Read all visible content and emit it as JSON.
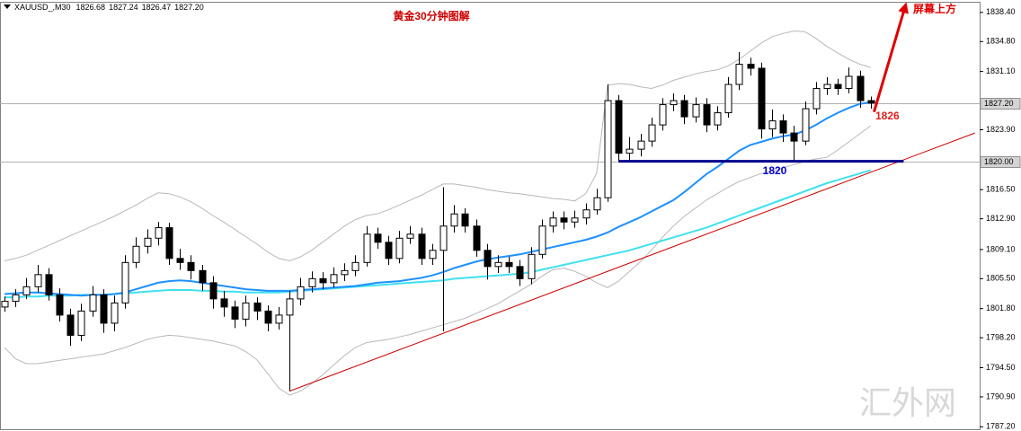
{
  "chart_data": {
    "type": "candlestick",
    "title": "黄金30分钟图解",
    "symbol": "XAUUSD_,M30",
    "quote": [
      "1826.68",
      "1827.24",
      "1826.47",
      "1827.20"
    ],
    "ylim": [
      1786.9,
      1839.6
    ],
    "yticks": [
      {
        "value": 1838.4,
        "label": "1838.40"
      },
      {
        "value": 1834.8,
        "label": "1834.80"
      },
      {
        "value": 1831.1,
        "label": "1831.10"
      },
      {
        "value": 1823.9,
        "label": "1823.90"
      },
      {
        "value": 1816.5,
        "label": "1816.50"
      },
      {
        "value": 1812.9,
        "label": "1812.90"
      },
      {
        "value": 1809.1,
        "label": "1809.10"
      },
      {
        "value": 1805.5,
        "label": "1805.50"
      },
      {
        "value": 1801.8,
        "label": "1801.80"
      },
      {
        "value": 1798.2,
        "label": "1798.20"
      },
      {
        "value": 1794.5,
        "label": "1794.50"
      },
      {
        "value": 1790.9,
        "label": "1790.90"
      },
      {
        "value": 1787.2,
        "label": "1787.20"
      }
    ],
    "price_levels": [
      {
        "value": 1827.2,
        "label": "1827.20"
      },
      {
        "value": 1820,
        "label": "1820.00"
      }
    ],
    "open": [
      1802.0,
      1802.7,
      1803.5,
      1804.5,
      1806.0,
      1803.5,
      1801.0,
      1798.5,
      1801.5,
      1803.5,
      1800.0,
      1802.5,
      1807.5,
      1809.5,
      1810.5,
      1811.8,
      1808.0,
      1807.5,
      1806.5,
      1805.0,
      1803.0,
      1802.0,
      1800.5,
      1802.5,
      1801.5,
      1800.0,
      1801.0,
      1803.0,
      1804.5,
      1805.5,
      1805.0,
      1806.0,
      1806.5,
      1807.5,
      1811.0,
      1810.0,
      1808.0,
      1810.5,
      1811.0,
      1808.0,
      1809.0,
      1812.0,
      1813.5,
      1812.0,
      1809.0,
      1807.0,
      1807.5,
      1807.0,
      1805.5,
      1808.5,
      1812.0,
      1813.0,
      1812.5,
      1813.0,
      1814.0,
      1815.5,
      1827.5,
      1821.0,
      1821.5,
      1822.5,
      1824.5,
      1827.0,
      1827.5,
      1825.5,
      1827.0,
      1824.5,
      1826.0,
      1829.5,
      1832.0,
      1831.5,
      1824.0,
      1825.0,
      1823.5,
      1822.5,
      1826.5,
      1829.0,
      1829.5,
      1829.0,
      1830.5,
      1827.5
    ],
    "high": [
      1803.3,
      1804.2,
      1805.6,
      1807.2,
      1806.8,
      1804.3,
      1801.8,
      1802.4,
      1804.6,
      1804.2,
      1803.4,
      1808.4,
      1810.6,
      1811.6,
      1812.5,
      1812.4,
      1809.2,
      1808.4,
      1807.2,
      1805.8,
      1804.0,
      1802.8,
      1803.4,
      1803.2,
      1802.2,
      1802.0,
      1804.0,
      1805.6,
      1806.4,
      1806.3,
      1806.9,
      1807.4,
      1808.4,
      1812.0,
      1811.8,
      1810.8,
      1811.4,
      1812.0,
      1811.8,
      1809.8,
      1816.8,
      1814.6,
      1814.2,
      1812.8,
      1809.8,
      1808.4,
      1808.2,
      1807.8,
      1809.4,
      1812.8,
      1813.8,
      1813.8,
      1813.9,
      1814.8,
      1816.6,
      1829.5,
      1828.2,
      1823.0,
      1823.4,
      1825.4,
      1827.8,
      1828.4,
      1828.2,
      1827.9,
      1827.8,
      1826.8,
      1830.4,
      1833.5,
      1832.8,
      1832.2,
      1826.4,
      1825.8,
      1824.4,
      1827.4,
      1829.8,
      1830.4,
      1830.2,
      1831.6,
      1831.2,
      1828.0
    ],
    "low": [
      1801.4,
      1802.0,
      1803.0,
      1803.8,
      1802.8,
      1800.2,
      1797.2,
      1797.8,
      1800.8,
      1798.8,
      1799.0,
      1801.8,
      1806.8,
      1808.6,
      1809.6,
      1807.2,
      1806.6,
      1805.4,
      1804.0,
      1801.8,
      1800.8,
      1799.4,
      1799.6,
      1800.4,
      1799.0,
      1799.2,
      1791.6,
      1802.2,
      1803.8,
      1804.2,
      1804.4,
      1805.2,
      1805.8,
      1807.0,
      1809.2,
      1807.2,
      1807.4,
      1809.8,
      1807.2,
      1807.2,
      1799.0,
      1811.2,
      1811.2,
      1808.2,
      1805.4,
      1806.2,
      1806.2,
      1804.6,
      1804.8,
      1808.0,
      1811.2,
      1811.6,
      1811.8,
      1812.2,
      1813.4,
      1815.0,
      1820.0,
      1820.0,
      1820.6,
      1821.8,
      1823.8,
      1826.2,
      1824.6,
      1824.8,
      1823.6,
      1823.8,
      1825.4,
      1828.8,
      1830.6,
      1822.8,
      1823.0,
      1822.4,
      1820.0,
      1822.0,
      1825.8,
      1828.2,
      1828.2,
      1828.4,
      1826.6,
      1826.5
    ],
    "close": [
      1802.7,
      1803.5,
      1804.5,
      1806.0,
      1803.5,
      1801.0,
      1798.5,
      1801.5,
      1803.5,
      1800.0,
      1802.5,
      1807.5,
      1809.5,
      1810.5,
      1811.8,
      1808.0,
      1807.5,
      1806.5,
      1805.0,
      1803.0,
      1802.0,
      1800.5,
      1802.5,
      1801.5,
      1800.0,
      1801.0,
      1803.0,
      1804.5,
      1805.5,
      1805.0,
      1806.0,
      1806.5,
      1807.5,
      1811.0,
      1810.0,
      1808.0,
      1810.5,
      1811.0,
      1808.0,
      1809.0,
      1812.0,
      1813.5,
      1812.0,
      1809.0,
      1807.0,
      1807.5,
      1807.0,
      1805.5,
      1808.5,
      1812.0,
      1813.0,
      1812.5,
      1813.0,
      1814.0,
      1815.5,
      1827.5,
      1821.0,
      1821.5,
      1822.5,
      1824.5,
      1827.0,
      1827.5,
      1825.5,
      1827.0,
      1824.5,
      1826.0,
      1829.5,
      1832.0,
      1831.5,
      1824.0,
      1825.0,
      1823.5,
      1822.5,
      1826.5,
      1829.0,
      1829.5,
      1829.0,
      1830.5,
      1827.5,
      1827.2
    ],
    "overlays": [
      {
        "color": "#b8b8b8",
        "values": [
          1807.7,
          1808.0,
          1808.4,
          1809.0,
          1809.6,
          1810.2,
          1810.8,
          1811.4,
          1812.0,
          1812.6,
          1813.2,
          1813.9,
          1814.6,
          1815.4,
          1816.1,
          1816.0,
          1815.6,
          1815.0,
          1814.2,
          1813.3,
          1812.5,
          1811.6,
          1810.7,
          1809.8,
          1808.8,
          1808.0,
          1807.7,
          1808.2,
          1809.0,
          1810.0,
          1811.0,
          1812.0,
          1812.8,
          1813.3,
          1813.5,
          1814.0,
          1814.6,
          1815.2,
          1815.8,
          1816.5,
          1817.2,
          1817.2,
          1817.0,
          1816.8,
          1816.5,
          1816.3,
          1816.1,
          1816.0,
          1815.8,
          1815.6,
          1815.4,
          1815.3,
          1815.1,
          1816.0,
          1818.5,
          1829.4,
          1829.6,
          1829.5,
          1829.2,
          1829.0,
          1829.4,
          1830.0,
          1830.4,
          1830.8,
          1831.1,
          1831.3,
          1831.8,
          1832.6,
          1833.6,
          1834.6,
          1835.4,
          1835.8,
          1836.1,
          1836.0,
          1835.2,
          1834.2,
          1833.4,
          1832.6,
          1832.0,
          1831.6
        ]
      },
      {
        "color": "#b8b8b8",
        "values": [
          1797.0,
          1795.6,
          1795.0,
          1795.0,
          1795.2,
          1795.4,
          1795.6,
          1795.8,
          1796.0,
          1796.2,
          1796.6,
          1797.0,
          1797.5,
          1798.0,
          1798.3,
          1798.5,
          1798.4,
          1798.2,
          1798.0,
          1797.8,
          1797.5,
          1797.2,
          1796.5,
          1795.5,
          1793.8,
          1792.0,
          1791.1,
          1791.6,
          1792.5,
          1793.6,
          1794.8,
          1796.0,
          1797.0,
          1797.6,
          1797.8,
          1798.0,
          1798.3,
          1798.6,
          1799.0,
          1799.4,
          1799.8,
          1800.2,
          1800.6,
          1801.2,
          1801.8,
          1802.4,
          1803.2,
          1804.0,
          1804.8,
          1805.8,
          1806.6,
          1806.8,
          1806.4,
          1805.8,
          1805.0,
          1804.4,
          1805.2,
          1806.4,
          1807.6,
          1809.0,
          1810.6,
          1812.0,
          1813.2,
          1814.2,
          1815.2,
          1816.0,
          1816.8,
          1817.5,
          1818.0,
          1818.5,
          1818.8,
          1819.2,
          1819.6,
          1820.0,
          1820.3,
          1820.5,
          1821.4,
          1822.4,
          1823.4,
          1824.4
        ]
      },
      {
        "color": "#40e0f0",
        "values": [
          1803.2,
          1803.2,
          1803.3,
          1803.3,
          1803.4,
          1803.4,
          1803.4,
          1803.5,
          1803.5,
          1803.5,
          1803.6,
          1803.7,
          1803.8,
          1803.9,
          1804.0,
          1804.1,
          1804.1,
          1804.1,
          1804.0,
          1804.0,
          1803.9,
          1803.9,
          1803.8,
          1803.8,
          1803.8,
          1803.8,
          1803.9,
          1804.0,
          1804.1,
          1804.2,
          1804.3,
          1804.4,
          1804.5,
          1804.6,
          1804.7,
          1804.8,
          1804.9,
          1805.0,
          1805.1,
          1805.2,
          1805.3,
          1805.5,
          1805.6,
          1805.7,
          1805.8,
          1805.9,
          1806.0,
          1806.1,
          1806.3,
          1806.6,
          1806.9,
          1807.2,
          1807.5,
          1807.8,
          1808.1,
          1808.4,
          1808.7,
          1809.0,
          1809.4,
          1809.8,
          1810.2,
          1810.6,
          1811.0,
          1811.4,
          1811.8,
          1812.3,
          1812.8,
          1813.3,
          1813.8,
          1814.3,
          1814.8,
          1815.3,
          1815.8,
          1816.3,
          1816.8,
          1817.3,
          1817.7,
          1818.1,
          1818.5,
          1818.9
        ]
      },
      {
        "color": "#1e90ff",
        "values": [
          1803.6,
          1803.7,
          1803.8,
          1803.8,
          1803.7,
          1803.6,
          1803.5,
          1803.4,
          1803.5,
          1803.5,
          1803.6,
          1803.8,
          1804.2,
          1804.6,
          1805.0,
          1805.2,
          1805.3,
          1805.2,
          1805.0,
          1804.8,
          1804.6,
          1804.4,
          1804.2,
          1804.1,
          1804.0,
          1804.0,
          1804.0,
          1804.1,
          1804.2,
          1804.3,
          1804.4,
          1804.5,
          1804.6,
          1804.8,
          1805.0,
          1805.1,
          1805.2,
          1805.4,
          1805.6,
          1805.9,
          1806.3,
          1806.8,
          1807.2,
          1807.6,
          1807.9,
          1808.1,
          1808.3,
          1808.5,
          1808.8,
          1809.1,
          1809.4,
          1809.7,
          1810.0,
          1810.3,
          1810.7,
          1811.2,
          1811.9,
          1812.5,
          1813.1,
          1813.8,
          1814.5,
          1815.2,
          1816.2,
          1817.3,
          1818.4,
          1819.3,
          1820.3,
          1821.3,
          1822.0,
          1822.4,
          1822.8,
          1823.1,
          1823.3,
          1823.8,
          1824.5,
          1825.3,
          1826.0,
          1826.6,
          1827.1,
          1827.3
        ]
      }
    ],
    "trendlines": [
      {
        "color": "#cc0000",
        "weight": "thin",
        "x": [
          26,
          88.5
        ],
        "y": [
          1791.6,
          1823.5
        ]
      },
      {
        "color": "#00008b",
        "weight": "heavy",
        "x": [
          56,
          82
        ],
        "y": [
          1820,
          1820
        ]
      },
      {
        "color": "#e00000",
        "weight": "heavy",
        "arrow": true,
        "x": [
          79.3,
          82.2
        ],
        "y": [
          1826.1,
          1839.4
        ]
      }
    ],
    "labels": [
      {
        "text": "1826",
        "color": "#e02020"
      },
      {
        "text": "1820",
        "color": "#0000cc"
      },
      {
        "text": "屏幕上方",
        "color": "#e00000"
      }
    ],
    "watermark": "汇外网"
  }
}
